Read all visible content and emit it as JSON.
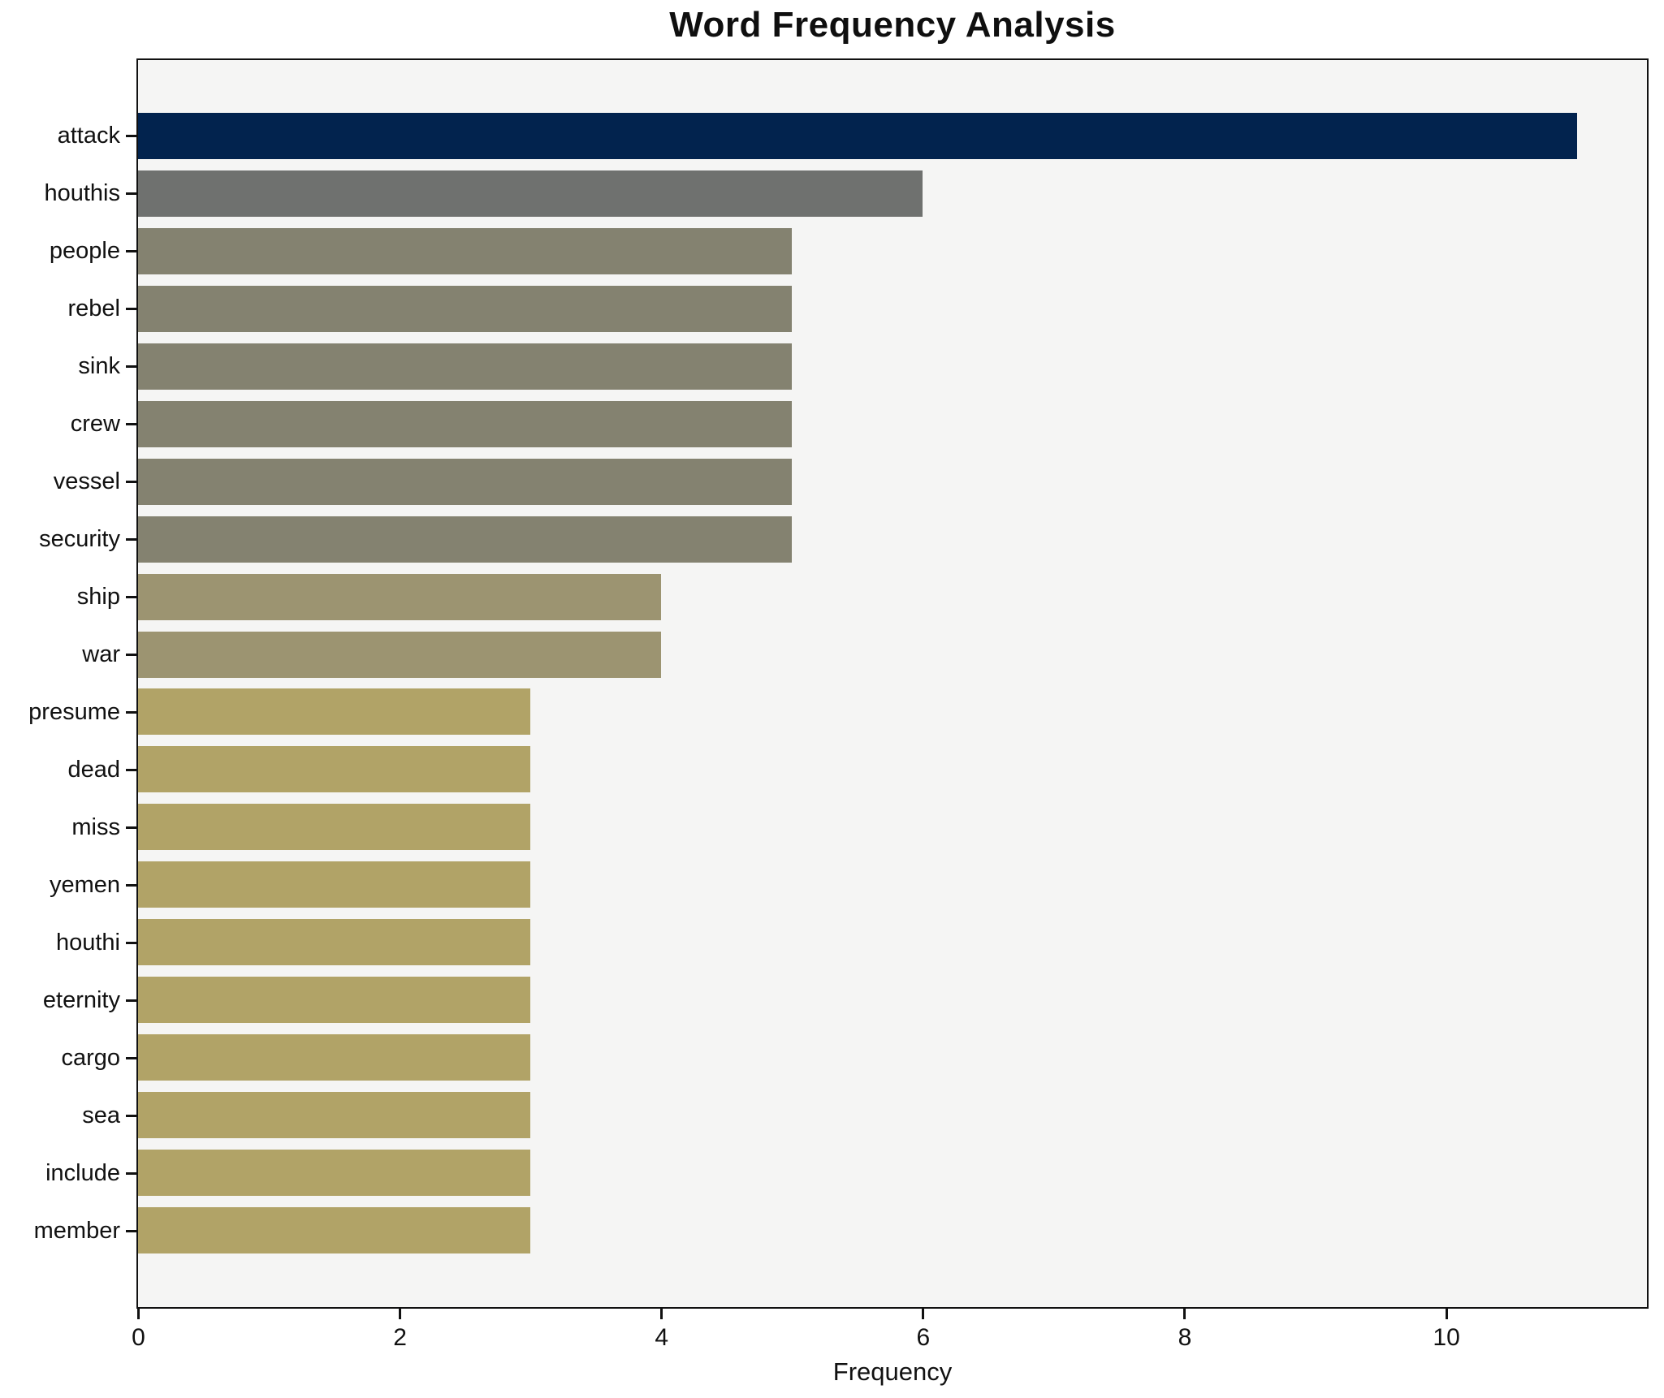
{
  "chart_data": {
    "type": "bar",
    "orientation": "horizontal",
    "title": "Word Frequency Analysis",
    "xlabel": "Frequency",
    "ylabel": "",
    "grid": false,
    "legend": false,
    "xlim": [
      0,
      11.53
    ],
    "x_ticks": [
      0,
      2,
      4,
      6,
      8,
      10
    ],
    "categories": [
      "attack",
      "houthis",
      "people",
      "rebel",
      "sink",
      "crew",
      "vessel",
      "security",
      "ship",
      "war",
      "presume",
      "dead",
      "miss",
      "yemen",
      "houthi",
      "eternity",
      "cargo",
      "sea",
      "include",
      "member"
    ],
    "values": [
      11,
      6,
      5,
      5,
      5,
      5,
      5,
      5,
      4,
      4,
      3,
      3,
      3,
      3,
      3,
      3,
      3,
      3,
      3,
      3
    ],
    "bar_colors": [
      "#02234e",
      "#6f716f",
      "#848270",
      "#848270",
      "#848270",
      "#848270",
      "#848270",
      "#848270",
      "#9c9471",
      "#9c9471",
      "#b1a367",
      "#b1a367",
      "#b1a367",
      "#b1a367",
      "#b1a367",
      "#b1a367",
      "#b1a367",
      "#b1a367",
      "#b1a367",
      "#b1a367"
    ],
    "value_color_map": {
      "11": "#02234e",
      "6": "#6f716f",
      "5": "#848270",
      "4": "#9c9471",
      "3": "#b1a367"
    },
    "plot_background": "#f5f5f4",
    "figure_background": "#ffffff",
    "spine_color": "#111111"
  }
}
